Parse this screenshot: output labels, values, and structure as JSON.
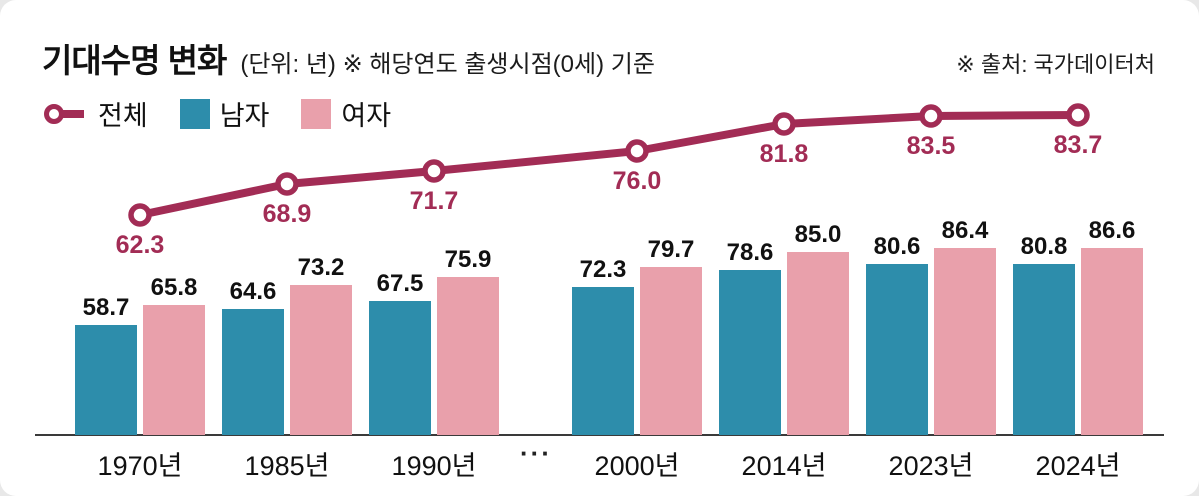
{
  "header": {
    "title": "기대수명 변화",
    "subtitle": "(단위: 년) ※ 해당연도 출생시점(0세) 기준",
    "source": "※ 출처: 국가데이터처"
  },
  "legend": {
    "items": [
      {
        "label": "전체",
        "type": "line",
        "color": "#a22c55"
      },
      {
        "label": "남자",
        "type": "bar",
        "color": "#2d8dab"
      },
      {
        "label": "여자",
        "type": "bar",
        "color": "#e9a0ab"
      }
    ]
  },
  "axis": {
    "break_label": "···"
  },
  "chart_data": {
    "type": "bar+line",
    "title": "기대수명 변화",
    "unit": "년",
    "note": "해당연도 출생시점(0세) 기준",
    "source": "국가데이터처",
    "categories": [
      "1970년",
      "1985년",
      "1990년",
      "2000년",
      "2014년",
      "2023년",
      "2024년"
    ],
    "axis_break_after_index": 2,
    "series": [
      {
        "name": "전체",
        "type": "line",
        "color": "#a22c55",
        "values": [
          62.3,
          68.9,
          71.7,
          76.0,
          81.8,
          83.5,
          83.7
        ]
      },
      {
        "name": "남자",
        "type": "bar",
        "color": "#2d8dab",
        "values": [
          58.7,
          64.6,
          67.5,
          72.3,
          78.6,
          80.6,
          80.8
        ]
      },
      {
        "name": "여자",
        "type": "bar",
        "color": "#e9a0ab",
        "values": [
          65.8,
          73.2,
          75.9,
          79.7,
          85.0,
          86.4,
          86.6
        ]
      }
    ],
    "value_labels": true,
    "legend_position": "top-left",
    "grid": false
  }
}
